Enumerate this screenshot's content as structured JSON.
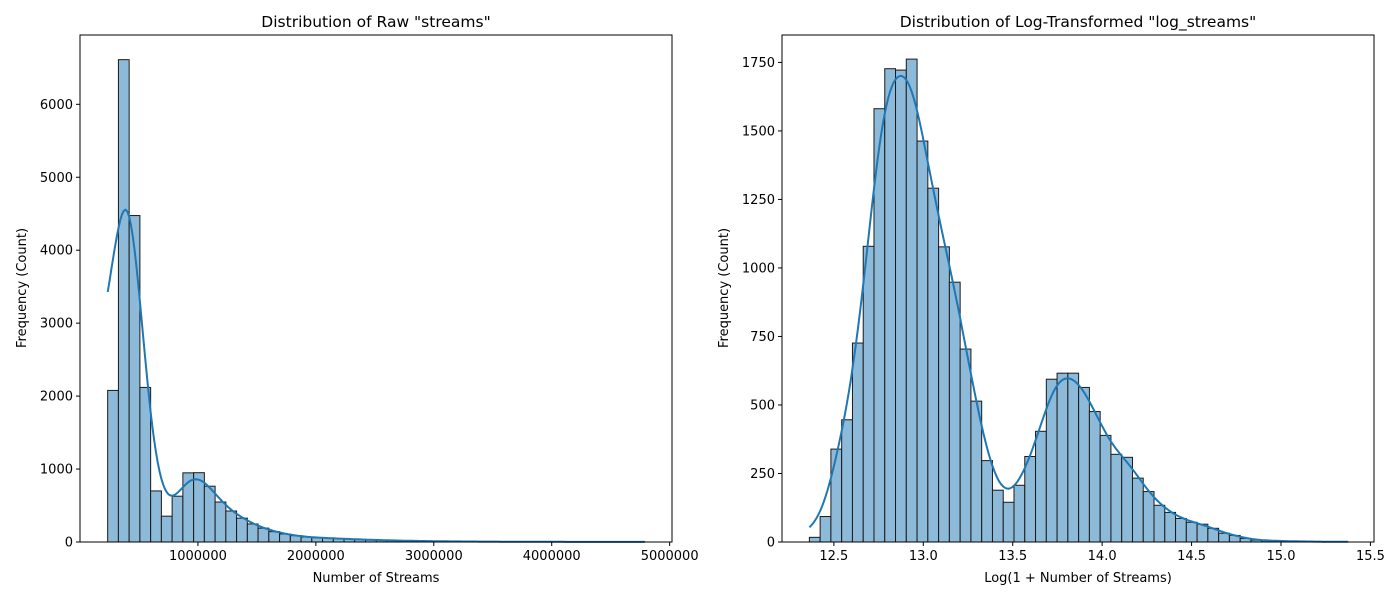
{
  "colors": {
    "bar_fill": "#8ebad9",
    "bar_edge": "#1a1a1a",
    "kde_line": "#1f77b4"
  },
  "chart_data": [
    {
      "type": "bar",
      "subtype": "histogram-with-kde",
      "title": "Distribution of Raw \"streams\"",
      "xlabel": "Number of Streams",
      "ylabel": "Frequency (Count)",
      "xlim": [
        0,
        5020000
      ],
      "ylim": [
        0,
        6950
      ],
      "bin_start": 234600,
      "bin_end": 4790000,
      "x_ticks": [
        1000000,
        2000000,
        3000000,
        4000000,
        5000000
      ],
      "x_tick_labels": [
        "1000000",
        "2000000",
        "3000000",
        "4000000",
        "5000000"
      ],
      "y_ticks": [
        0,
        1000,
        2000,
        3000,
        4000,
        5000,
        6000
      ],
      "y_tick_labels": [
        "0",
        "1000",
        "2000",
        "3000",
        "4000",
        "5000",
        "6000"
      ],
      "grid": false,
      "values": [
        2078,
        6612,
        4475,
        2119,
        700,
        354,
        628,
        948,
        950,
        765,
        548,
        425,
        327,
        247,
        190,
        142,
        110,
        87,
        68,
        59,
        55,
        46,
        41,
        35,
        30,
        25,
        22,
        18,
        15,
        13,
        11,
        9,
        8,
        7,
        6,
        5,
        5,
        4,
        4,
        3,
        3,
        2,
        2,
        2,
        2,
        1,
        1,
        1,
        1,
        1
      ]
    },
    {
      "type": "bar",
      "subtype": "histogram-with-kde",
      "title": "Distribution of Log-Transformed \"log_streams\"",
      "xlabel": "Log(1 + Number of Streams)",
      "ylabel": "Frequency (Count)",
      "xlim": [
        12.21,
        15.52
      ],
      "ylim": [
        0,
        1850
      ],
      "bin_start": 12.363,
      "bin_end": 15.374,
      "x_ticks": [
        12.5,
        13.0,
        13.5,
        14.0,
        14.5,
        15.0,
        15.5
      ],
      "x_tick_labels": [
        "12.5",
        "13.0",
        "13.5",
        "14.0",
        "14.5",
        "15.0",
        "15.5"
      ],
      "y_ticks": [
        0,
        250,
        500,
        750,
        1000,
        1250,
        1500,
        1750
      ],
      "y_tick_labels": [
        "0",
        "250",
        "500",
        "750",
        "1000",
        "1250",
        "1500",
        "1750"
      ],
      "grid": false,
      "values": [
        17,
        93,
        339,
        446,
        726,
        1079,
        1581,
        1727,
        1722,
        1762,
        1463,
        1291,
        1077,
        948,
        704,
        514,
        297,
        189,
        145,
        207,
        312,
        404,
        594,
        616,
        616,
        564,
        476,
        389,
        320,
        309,
        233,
        184,
        134,
        108,
        86,
        72,
        65,
        50,
        32,
        24,
        13,
        7,
        5,
        4,
        3,
        2,
        2,
        1,
        1,
        1
      ]
    }
  ]
}
